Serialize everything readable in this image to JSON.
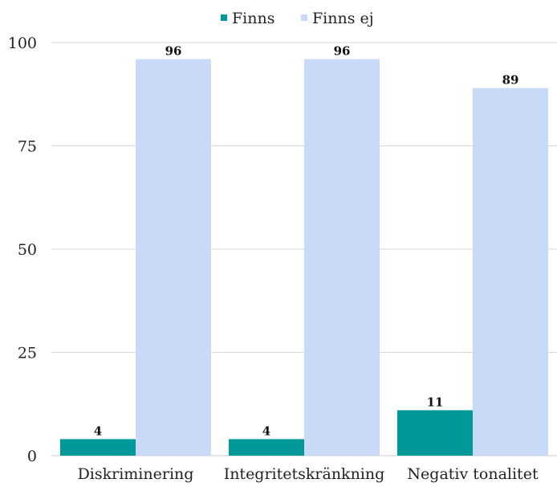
{
  "chart_data": {
    "type": "bar",
    "title": "",
    "xlabel": "",
    "ylabel": "",
    "categories": [
      "Diskriminering",
      "Integritetskränkning",
      "Negativ tonalitet"
    ],
    "series": [
      {
        "name": "Finns",
        "values": [
          4,
          4,
          11
        ],
        "color": "#009999"
      },
      {
        "name": "Finns ej",
        "values": [
          96,
          96,
          89
        ],
        "color": "#c9daf8"
      }
    ],
    "ylim": [
      0,
      100
    ],
    "yticks": [
      0,
      25,
      50,
      75,
      100
    ],
    "grid": true,
    "legend": "top-center",
    "data_labels": true
  }
}
